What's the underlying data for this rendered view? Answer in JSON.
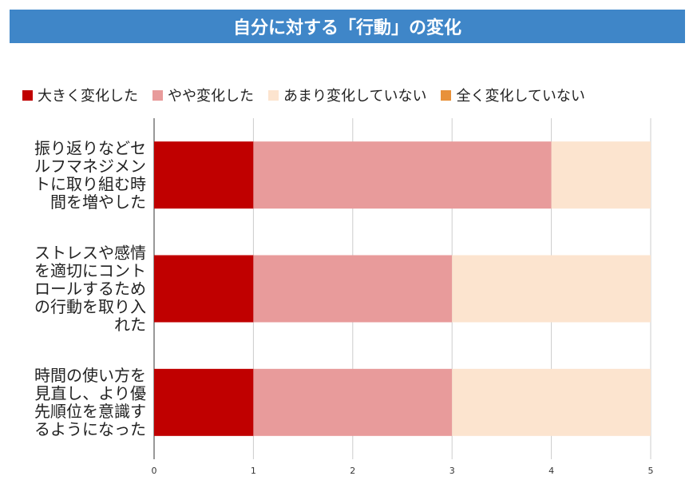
{
  "chart_data": {
    "type": "bar",
    "orientation": "horizontal",
    "stacked": true,
    "title": "自分に対する「行動」の変化",
    "categories": [
      [
        "振り返りなどセ",
        "ルフマネジメン",
        "トに取り組む時",
        "間を増やした"
      ],
      [
        "ストレスや感情",
        "を適切にコント",
        "ロールするため",
        "の行動を取り入",
        "れた"
      ],
      [
        "時間の使い方を",
        "見直し、より優",
        "先順位を意識す",
        "るようになった"
      ]
    ],
    "series": [
      {
        "name": "大きく変化した",
        "color": "#c00000",
        "values": [
          1,
          1,
          1
        ]
      },
      {
        "name": "やや変化した",
        "color": "#e89b9b",
        "values": [
          3,
          2,
          2
        ]
      },
      {
        "name": "あまり変化していない",
        "color": "#fce4cf",
        "values": [
          1,
          2,
          2
        ]
      },
      {
        "name": "全く変化していない",
        "color": "#e8913a",
        "values": [
          0,
          0,
          0
        ]
      }
    ],
    "xlim": [
      0,
      5
    ],
    "xticks": [
      "0",
      "1",
      "2",
      "3",
      "4",
      "5"
    ],
    "grid": true,
    "legend": "top"
  }
}
